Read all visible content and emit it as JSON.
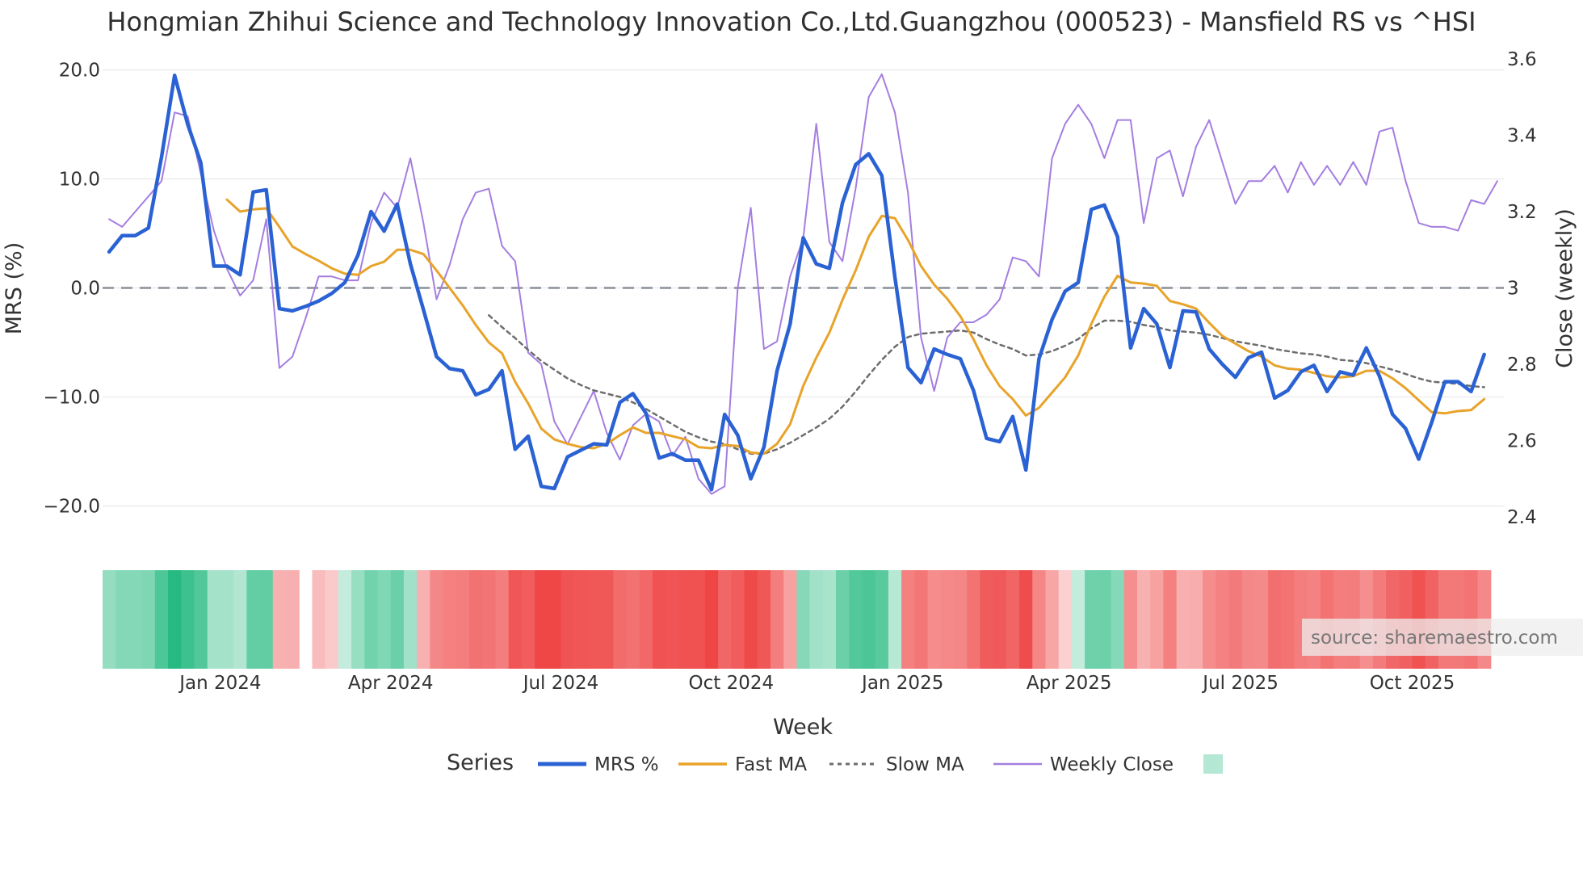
{
  "chart_data": {
    "type": "line",
    "title": "Hongmian Zhihui Science and Technology Innovation Co.,Ltd.Guangzhou (000523) - Mansfield RS vs ^HSI",
    "xlabel": "Week",
    "ylabel": "MRS (%)",
    "y2label": "Close (weekly)",
    "ylim": [
      -21,
      21
    ],
    "y2lim": [
      2.4,
      3.6
    ],
    "yticks": [
      "20.0",
      "10.0",
      "0.0",
      "−10.0",
      "−20.0"
    ],
    "y2ticks": [
      "3.6",
      "3.4",
      "3.2",
      "3",
      "2.8",
      "2.6",
      "2.4"
    ],
    "xticks": [
      "Jan 2024",
      "Apr 2024",
      "Jul 2024",
      "Oct 2024",
      "Jan 2025",
      "Apr 2025",
      "Jul 2025",
      "Oct 2025"
    ],
    "xtick_weeks": [
      8.5,
      21.5,
      34.5,
      47.5,
      60.6,
      73.3,
      86.4,
      99.5
    ],
    "weeks": 107,
    "zero_line": 0,
    "series": [
      {
        "name": "MRS %",
        "color": "#2a62d4",
        "values": [
          3.3,
          4.8,
          4.8,
          5.5,
          12.0,
          19.5,
          15.0,
          11.5,
          2.0,
          2.0,
          1.2,
          8.8,
          9.0,
          -1.9,
          -2.1,
          -1.7,
          -1.2,
          -0.5,
          0.5,
          3.0,
          7.0,
          5.2,
          7.7,
          2.2,
          -2.0,
          -6.3,
          -7.4,
          -7.6,
          -9.8,
          -9.3,
          -7.6,
          -14.8,
          -13.6,
          -18.2,
          -18.4,
          -15.5,
          -14.9,
          -14.3,
          -14.4,
          -10.5,
          -9.7,
          -11.5,
          -15.6,
          -15.2,
          -15.8,
          -15.8,
          -18.5,
          -11.6,
          -13.5,
          -17.5,
          -14.6,
          -7.6,
          -3.3,
          4.6,
          2.2,
          1.8,
          7.8,
          11.3,
          12.3,
          10.3,
          1.0,
          -7.3,
          -8.7,
          -5.6,
          -6.1,
          -6.5,
          -9.4,
          -13.8,
          -14.1,
          -11.8,
          -16.7,
          -6.5,
          -2.9,
          -0.3,
          0.5,
          7.2,
          7.6,
          4.7,
          -5.5,
          -1.9,
          -3.3,
          -7.3,
          -2.1,
          -2.2,
          -5.6,
          -7.0,
          -8.2,
          -6.4,
          -5.9,
          -10.1,
          -9.4,
          -7.7,
          -7.1,
          -9.5,
          -7.7,
          -8.0,
          -5.5,
          -8.1,
          -11.6,
          -12.9,
          -15.7,
          -12.3,
          -8.6,
          -8.6,
          -9.5,
          -6.1
        ]
      },
      {
        "name": "Fast MA",
        "color": "#e8a32a",
        "values": [
          null,
          null,
          null,
          null,
          null,
          null,
          null,
          null,
          null,
          8.1,
          7.0,
          7.2,
          7.3,
          5.6,
          3.8,
          3.1,
          2.5,
          1.8,
          1.3,
          1.2,
          2.0,
          2.4,
          3.5,
          3.5,
          3.1,
          1.6,
          0.0,
          -1.6,
          -3.4,
          -5.0,
          -6.0,
          -8.6,
          -10.6,
          -12.9,
          -13.9,
          -14.3,
          -14.6,
          -14.7,
          -14.3,
          -13.5,
          -12.8,
          -13.3,
          -13.3,
          -13.6,
          -13.9,
          -14.6,
          -14.7,
          -14.4,
          -14.5,
          -15.1,
          -15.2,
          -14.3,
          -12.5,
          -9.0,
          -6.4,
          -4.1,
          -1.1,
          1.6,
          4.7,
          6.6,
          6.4,
          4.4,
          2.0,
          0.3,
          -1.0,
          -2.6,
          -4.7,
          -7.1,
          -9.0,
          -10.2,
          -11.7,
          -11.0,
          -9.6,
          -8.2,
          -6.2,
          -3.3,
          -0.8,
          1.1,
          0.5,
          0.4,
          0.2,
          -1.2,
          -1.5,
          -1.9,
          -3.2,
          -4.4,
          -5.1,
          -5.8,
          -6.3,
          -7.1,
          -7.4,
          -7.5,
          -7.8,
          -8.1,
          -8.2,
          -8.1,
          -7.6,
          -7.6,
          -8.3,
          -9.2,
          -10.3,
          -11.4,
          -11.5,
          -11.3,
          -11.2,
          -10.2
        ]
      },
      {
        "name": "Slow MA",
        "color": "#6d6d6d",
        "values": [
          null,
          null,
          null,
          null,
          null,
          null,
          null,
          null,
          null,
          null,
          null,
          null,
          null,
          null,
          null,
          null,
          null,
          null,
          null,
          null,
          null,
          null,
          null,
          null,
          null,
          null,
          null,
          null,
          null,
          -2.5,
          -3.6,
          -4.6,
          -5.7,
          -6.7,
          -7.5,
          -8.3,
          -8.9,
          -9.4,
          -9.7,
          -10.0,
          -10.5,
          -11.1,
          -11.8,
          -12.5,
          -13.2,
          -13.7,
          -14.1,
          -14.3,
          -14.8,
          -15.2,
          -15.2,
          -14.8,
          -14.2,
          -13.5,
          -12.8,
          -12.0,
          -10.9,
          -9.5,
          -8.0,
          -6.6,
          -5.4,
          -4.5,
          -4.2,
          -4.1,
          -4.0,
          -3.9,
          -4.1,
          -4.7,
          -5.2,
          -5.6,
          -6.2,
          -6.1,
          -5.8,
          -5.3,
          -4.7,
          -3.7,
          -3.0,
          -3.0,
          -3.1,
          -3.4,
          -3.6,
          -3.9,
          -4.0,
          -4.1,
          -4.3,
          -4.6,
          -4.9,
          -5.1,
          -5.3,
          -5.6,
          -5.8,
          -6.0,
          -6.1,
          -6.3,
          -6.6,
          -6.7,
          -6.9,
          -7.2,
          -7.5,
          -7.9,
          -8.3,
          -8.6,
          -8.7,
          -8.8,
          -9.0,
          -9.1
        ]
      },
      {
        "name": "Weekly Close",
        "color": "#a47ee0",
        "axis": "y2",
        "values": [
          3.18,
          3.16,
          3.2,
          3.24,
          3.28,
          3.46,
          3.45,
          3.3,
          3.15,
          3.05,
          2.98,
          3.02,
          3.18,
          2.79,
          2.82,
          2.92,
          3.03,
          3.03,
          3.02,
          3.02,
          3.17,
          3.25,
          3.21,
          3.34,
          3.17,
          2.97,
          3.06,
          3.18,
          3.25,
          3.26,
          3.11,
          3.07,
          2.83,
          2.8,
          2.65,
          2.59,
          2.66,
          2.73,
          2.62,
          2.55,
          2.64,
          2.67,
          2.65,
          2.56,
          2.61,
          2.5,
          2.46,
          2.48,
          3.0,
          3.21,
          2.84,
          2.86,
          3.03,
          3.13,
          3.43,
          3.12,
          3.07,
          3.26,
          3.5,
          3.56,
          3.46,
          3.25,
          2.87,
          2.73,
          2.87,
          2.91,
          2.91,
          2.93,
          2.97,
          3.08,
          3.07,
          3.03,
          3.34,
          3.43,
          3.48,
          3.43,
          3.34,
          3.44,
          3.44,
          3.17,
          3.34,
          3.36,
          3.24,
          3.37,
          3.44,
          3.33,
          3.22,
          3.28,
          3.28,
          3.32,
          3.25,
          3.33,
          3.27,
          3.32,
          3.27,
          3.33,
          3.27,
          3.41,
          3.42,
          3.28,
          3.17,
          3.16,
          3.16,
          3.15,
          3.23,
          3.22,
          3.28
        ]
      }
    ],
    "heatmap": {
      "name": "MRS heat strip",
      "positive_color": "#24b97f",
      "negative_color": "#ee3f3f",
      "max_abs": 20,
      "gap_weeks": [
        15
      ]
    },
    "legend": {
      "title": "Series",
      "entries": [
        "MRS %",
        "Fast MA",
        "Slow MA",
        "Weekly Close",
        ""
      ]
    },
    "source_label": "source: sharemaestro.com"
  }
}
